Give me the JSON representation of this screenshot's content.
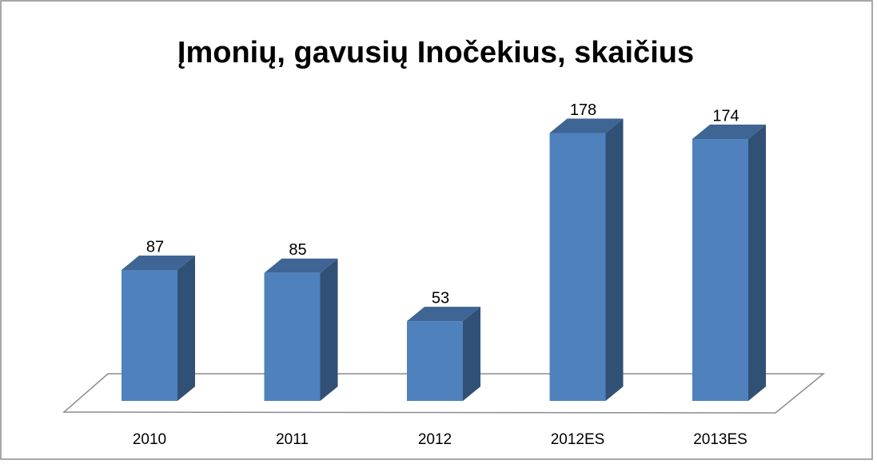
{
  "chart_data": {
    "type": "bar3d",
    "title": "Įmonių, gavusių Inočekius, skaičius",
    "categories": [
      "2010",
      "2011",
      "2012",
      "2012ES",
      "2013ES"
    ],
    "values": [
      87,
      85,
      53,
      178,
      174
    ],
    "color": "#4f81bd"
  }
}
